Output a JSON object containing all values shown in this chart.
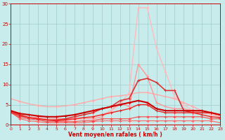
{
  "x": [
    0,
    1,
    2,
    3,
    4,
    5,
    6,
    7,
    8,
    9,
    10,
    11,
    12,
    13,
    14,
    15,
    16,
    17,
    18,
    19,
    20,
    21,
    22,
    23
  ],
  "series": [
    {
      "y": [
        6.5,
        5.8,
        5.2,
        4.8,
        4.5,
        4.5,
        4.7,
        5.0,
        5.5,
        6.0,
        6.5,
        7.0,
        7.2,
        7.5,
        8.0,
        8.0,
        7.5,
        7.0,
        6.5,
        5.5,
        4.5,
        3.5,
        2.5,
        2.0
      ],
      "color": "#ffaaaa",
      "lw": 1.0
    },
    {
      "y": [
        3.0,
        2.5,
        2.0,
        1.8,
        1.5,
        1.5,
        1.5,
        1.5,
        1.5,
        1.5,
        2.0,
        3.5,
        5.5,
        4.5,
        15.0,
        12.0,
        5.5,
        4.5,
        4.0,
        4.0,
        3.5,
        3.0,
        3.0,
        2.0
      ],
      "color": "#ff9999",
      "lw": 1.0
    },
    {
      "y": [
        3.0,
        2.5,
        2.0,
        1.5,
        1.2,
        1.0,
        1.0,
        1.2,
        1.5,
        2.0,
        2.5,
        3.5,
        5.0,
        8.0,
        29.0,
        29.0,
        19.0,
        13.0,
        7.0,
        5.0,
        3.5,
        3.0,
        2.5,
        2.0
      ],
      "color": "#ffbbbb",
      "lw": 1.0
    },
    {
      "y": [
        3.5,
        2.5,
        1.8,
        1.5,
        1.2,
        1.2,
        1.5,
        2.0,
        2.5,
        3.0,
        4.0,
        4.5,
        6.0,
        6.5,
        11.0,
        11.5,
        10.5,
        8.5,
        8.5,
        3.5,
        3.0,
        3.0,
        3.0,
        2.5
      ],
      "color": "#dd3333",
      "lw": 1.2
    },
    {
      "y": [
        3.2,
        1.5,
        1.0,
        0.8,
        0.5,
        0.5,
        0.5,
        0.5,
        0.5,
        0.8,
        1.0,
        1.0,
        1.0,
        1.0,
        1.0,
        1.0,
        1.0,
        1.0,
        1.0,
        1.0,
        1.0,
        1.0,
        1.0,
        0.5
      ],
      "color": "#ff6666",
      "lw": 0.8
    },
    {
      "y": [
        3.0,
        1.8,
        1.5,
        1.2,
        0.8,
        0.8,
        0.8,
        0.8,
        1.0,
        1.0,
        1.5,
        1.5,
        1.5,
        1.5,
        2.0,
        2.0,
        2.0,
        2.0,
        2.0,
        2.0,
        2.0,
        2.0,
        1.5,
        1.5
      ],
      "color": "#ff4444",
      "lw": 0.8
    },
    {
      "y": [
        3.5,
        2.8,
        2.5,
        2.2,
        2.0,
        2.0,
        2.2,
        2.5,
        3.0,
        3.5,
        4.0,
        4.5,
        5.0,
        5.5,
        6.0,
        5.5,
        4.0,
        3.5,
        3.5,
        3.5,
        3.5,
        3.5,
        3.0,
        2.5
      ],
      "color": "#cc0000",
      "lw": 1.5
    },
    {
      "y": [
        3.2,
        2.2,
        1.8,
        1.5,
        1.2,
        1.0,
        1.2,
        1.5,
        1.8,
        2.0,
        2.5,
        3.0,
        3.5,
        4.0,
        5.0,
        5.0,
        3.5,
        3.0,
        3.0,
        3.0,
        3.0,
        2.5,
        2.0,
        1.8
      ],
      "color": "#ee2222",
      "lw": 1.0
    }
  ],
  "xlim": [
    0,
    23
  ],
  "ylim": [
    0,
    30
  ],
  "yticks": [
    0,
    5,
    10,
    15,
    20,
    25,
    30
  ],
  "xticks": [
    0,
    1,
    2,
    3,
    4,
    5,
    6,
    7,
    8,
    9,
    10,
    11,
    12,
    13,
    14,
    15,
    16,
    17,
    18,
    19,
    20,
    21,
    22,
    23
  ],
  "xlabel": "Vent moyen/en rafales ( km/h )",
  "bg_color": "#c8ecec",
  "grid_color": "#a0cccc",
  "axis_color": "#cc0000",
  "label_color": "#cc0000"
}
